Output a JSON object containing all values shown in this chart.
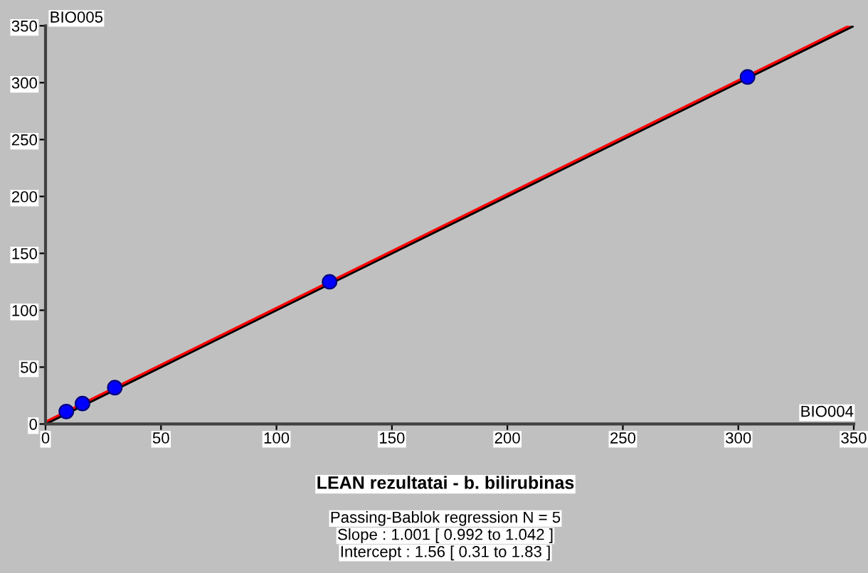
{
  "chart_data": {
    "type": "scatter",
    "title": "LEAN rezultatai - b. bilirubinas",
    "xlabel": "BIO004",
    "ylabel": "BIO005",
    "annotations": [
      "Passing-Bablok regression N = 5",
      "Slope : 1.001 [ 0.992 to 1.042 ]",
      "Intercept : 1.56 [ 0.31 to 1.83 ]"
    ],
    "series": [
      {
        "type": "line",
        "color": "#000000",
        "x": [
          0,
          350
        ],
        "values": [
          0,
          350
        ]
      },
      {
        "type": "line",
        "color": "#ff0000",
        "x": [
          0,
          348
        ],
        "values": [
          2,
          350
        ]
      },
      {
        "color": "#0000ff",
        "marker": "circle",
        "x": [
          9,
          16,
          30,
          123,
          304
        ],
        "values": [
          11,
          18,
          32,
          125,
          305
        ]
      }
    ],
    "xlim": [
      0,
      350
    ],
    "ylim": [
      0,
      350
    ],
    "xticks": [
      0,
      50,
      100,
      150,
      200,
      250,
      300,
      350
    ],
    "yticks": [
      0,
      50,
      100,
      150,
      200,
      250,
      300,
      350
    ],
    "grid": false,
    "legend": false
  }
}
